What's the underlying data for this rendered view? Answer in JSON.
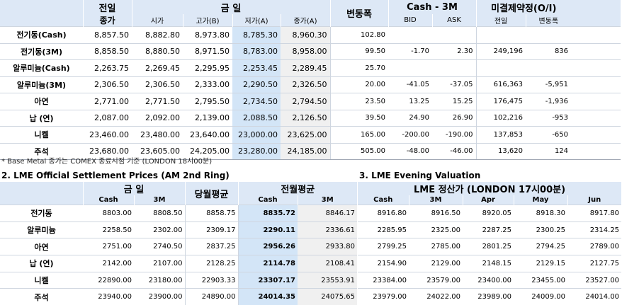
{
  "top_table": {
    "headers": {
      "prev": "전일",
      "prev_close": "종가",
      "today": "금     일",
      "open": "시가",
      "high": "고가(B)",
      "low": "저가(A)",
      "close": "종가(A)",
      "change": "변동폭",
      "cash3m": "Cash - 3M",
      "bid": "BID",
      "ask": "ASK",
      "oi": "미결제약정(O/I)",
      "oi_prev": "전일",
      "oi_change": "변동폭"
    },
    "rows": [
      {
        "name": "전기동(Cash)",
        "prev": "8,857.50",
        "open": "8,882.80",
        "high": "8,973.80",
        "low": "8,785.30",
        "close": "8,960.30",
        "change": "102.80",
        "bid": "",
        "ask": "",
        "oi": "",
        "oi_chg": ""
      },
      {
        "name": "전기동(3M)",
        "prev": "8,858.50",
        "open": "8,880.50",
        "high": "8,971.50",
        "low": "8,783.00",
        "close": "8,958.00",
        "change": "99.50",
        "bid": "-1.70",
        "ask": "2.30",
        "oi": "249,196",
        "oi_chg": "836"
      },
      {
        "name": "알루미늄(Cash)",
        "prev": "2,263.75",
        "open": "2,269.45",
        "high": "2,295.95",
        "low": "2,253.45",
        "close": "2,289.45",
        "change": "25.70",
        "bid": "",
        "ask": "",
        "oi": "",
        "oi_chg": ""
      },
      {
        "name": "알루미늄(3M)",
        "prev": "2,306.50",
        "open": "2,306.50",
        "high": "2,333.00",
        "low": "2,290.50",
        "close": "2,326.50",
        "change": "20.00",
        "bid": "-41.05",
        "ask": "-37.05",
        "oi": "616,363",
        "oi_chg": "-5,951"
      },
      {
        "name": "아연",
        "prev": "2,771.00",
        "open": "2,771.50",
        "high": "2,795.50",
        "low": "2,734.50",
        "close": "2,794.50",
        "change": "23.50",
        "bid": "13.25",
        "ask": "15.25",
        "oi": "176,475",
        "oi_chg": "-1,936"
      },
      {
        "name": "납 (연)",
        "prev": "2,087.00",
        "open": "2,092.00",
        "high": "2,139.00",
        "low": "2,088.50",
        "close": "2,126.50",
        "change": "39.50",
        "bid": "24.90",
        "ask": "26.90",
        "oi": "102,216",
        "oi_chg": "-953"
      },
      {
        "name": "니켈",
        "prev": "23,460.00",
        "open": "23,480.00",
        "high": "23,640.00",
        "low": "23,000.00",
        "close": "23,625.00",
        "change": "165.00",
        "bid": "-200.00",
        "ask": "-190.00",
        "oi": "137,853",
        "oi_chg": "-650"
      },
      {
        "name": "주석",
        "prev": "23,680.00",
        "open": "23,605.00",
        "high": "24,205.00",
        "low": "23,280.00",
        "close": "24,185.00",
        "change": "505.00",
        "bid": "-48.00",
        "ask": "-46.00",
        "oi": "13,620",
        "oi_chg": "124"
      }
    ]
  },
  "note": "* Base Metal 종가는 COMEX 종료시점 기준 (LONDON 18시00분)",
  "lme_settlement": {
    "title": "2. LME Official Settlement Prices (AM 2nd Ring)",
    "headers": {
      "today": "금     일",
      "month_avg": "당월평균",
      "prev_month_avg": "전월평균",
      "cash": "Cash",
      "m3": "3M"
    },
    "rows": [
      {
        "name": "전기동",
        "cash": "8803.00",
        "m3": "8808.50",
        "month_avg": "8858.75",
        "prev_cash": "8835.72",
        "prev_3m": "8846.17"
      },
      {
        "name": "알루미늄",
        "cash": "2258.50",
        "m3": "2302.00",
        "month_avg": "2309.17",
        "prev_cash": "2290.11",
        "prev_3m": "2336.61"
      },
      {
        "name": "아연",
        "cash": "2751.00",
        "m3": "2740.50",
        "month_avg": "2837.25",
        "prev_cash": "2956.26",
        "prev_3m": "2933.80"
      },
      {
        "name": "납 (연)",
        "cash": "2142.00",
        "m3": "2107.00",
        "month_avg": "2128.25",
        "prev_cash": "2114.78",
        "prev_3m": "2108.41"
      },
      {
        "name": "니켈",
        "cash": "22890.00",
        "m3": "23180.00",
        "month_avg": "22903.33",
        "prev_cash": "23307.17",
        "prev_3m": "23553.91"
      },
      {
        "name": "주석",
        "cash": "23940.00",
        "m3": "23900.00",
        "month_avg": "24890.00",
        "prev_cash": "24014.35",
        "prev_3m": "24075.65"
      }
    ]
  },
  "evening_valuation": {
    "title": "3. LME Evening Valuation",
    "header": "LME 정산가 (LONDON 17시00분)",
    "columns": [
      "Cash",
      "3M",
      "Apr",
      "May",
      "Jun"
    ],
    "rows": [
      [
        "8916.80",
        "8916.50",
        "8920.05",
        "8918.30",
        "8917.80"
      ],
      [
        "2285.95",
        "2325.00",
        "2287.25",
        "2300.25",
        "2314.25"
      ],
      [
        "2799.25",
        "2785.00",
        "2801.25",
        "2794.25",
        "2789.00"
      ],
      [
        "2154.90",
        "2129.00",
        "2148.15",
        "2129.15",
        "2127.75"
      ],
      [
        "23384.00",
        "23579.00",
        "23400.00",
        "23455.00",
        "23527.00"
      ],
      [
        "23979.00",
        "24022.00",
        "23989.00",
        "24009.00",
        "24014.00"
      ]
    ]
  },
  "colors": {
    "header_bg": "#dde8f6",
    "highlight_bg": "#d3e5f7",
    "gray_bg": "#f0f0f0"
  }
}
